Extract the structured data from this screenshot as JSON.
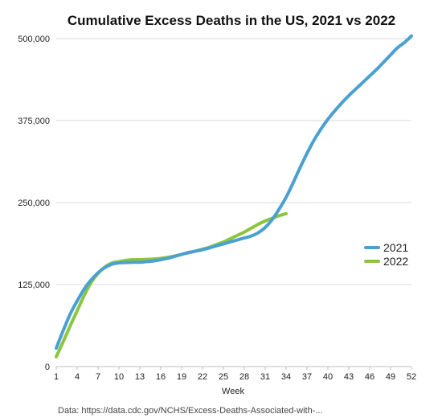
{
  "chart_data": {
    "type": "line",
    "title": "Cumulative Excess Deaths in the US, 2021 vs 2022",
    "xlabel": "Week",
    "ylabel": "",
    "xlim": [
      1,
      52
    ],
    "ylim": [
      0,
      500000
    ],
    "x_ticks": [
      1,
      4,
      7,
      10,
      13,
      16,
      19,
      22,
      25,
      28,
      31,
      34,
      37,
      40,
      43,
      46,
      49,
      52
    ],
    "y_ticks": [
      0,
      125000,
      250000,
      375000,
      500000
    ],
    "y_tick_labels": [
      "0",
      "125,000",
      "250,000",
      "375,000",
      "500,000"
    ],
    "grid": true,
    "legend_position": "right",
    "series": [
      {
        "name": "2021",
        "color": "#4aa0d0",
        "x": [
          1,
          2,
          3,
          4,
          5,
          6,
          7,
          8,
          9,
          10,
          11,
          12,
          13,
          14,
          15,
          16,
          17,
          18,
          19,
          20,
          21,
          22,
          23,
          24,
          25,
          26,
          27,
          28,
          29,
          30,
          31,
          32,
          33,
          34,
          35,
          36,
          37,
          38,
          39,
          40,
          41,
          42,
          43,
          44,
          45,
          46,
          47,
          48,
          49,
          50,
          51,
          52
        ],
        "values": [
          28000,
          55000,
          80000,
          100000,
          118000,
          132000,
          143000,
          151000,
          156000,
          158000,
          158500,
          159000,
          159000,
          160000,
          161000,
          163000,
          165000,
          168000,
          171000,
          174000,
          176000,
          178000,
          181000,
          184000,
          187000,
          190000,
          193000,
          196000,
          199000,
          204000,
          212000,
          224000,
          240000,
          258000,
          280000,
          303000,
          325000,
          345000,
          362000,
          377000,
          390000,
          402000,
          413000,
          423000,
          433000,
          443000,
          453000,
          464000,
          475000,
          486000,
          494000,
          504000
        ]
      },
      {
        "name": "2022",
        "color": "#8cc63f",
        "x": [
          1,
          2,
          3,
          4,
          5,
          6,
          7,
          8,
          9,
          10,
          11,
          12,
          13,
          14,
          15,
          16,
          17,
          18,
          19,
          20,
          21,
          22,
          23,
          24,
          25,
          26,
          27,
          28,
          29,
          30,
          31,
          32,
          33,
          34
        ],
        "values": [
          15000,
          38000,
          62000,
          85000,
          108000,
          128000,
          142000,
          152000,
          158000,
          160000,
          162000,
          163000,
          163000,
          163500,
          164000,
          165000,
          166500,
          168500,
          171000,
          173500,
          176000,
          179000,
          182000,
          186000,
          190000,
          195000,
          200000,
          205000,
          211000,
          217000,
          222000,
          226000,
          230000,
          233000
        ]
      }
    ],
    "annotations": []
  },
  "footer": {
    "source_text": "Data: https://data.cdc.gov/NCHS/Excess-Deaths-Associated-with-..."
  }
}
